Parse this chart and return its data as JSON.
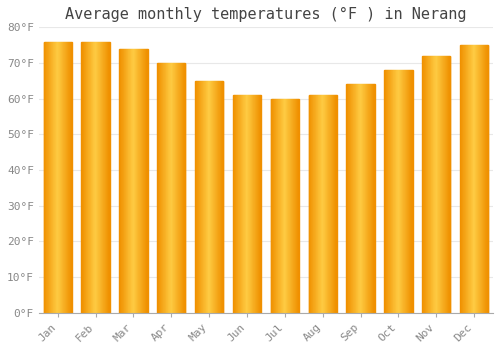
{
  "title": "Average monthly temperatures (°F ) in Nerang",
  "months": [
    "Jan",
    "Feb",
    "Mar",
    "Apr",
    "May",
    "Jun",
    "Jul",
    "Aug",
    "Sep",
    "Oct",
    "Nov",
    "Dec"
  ],
  "values": [
    76,
    76,
    74,
    70,
    65,
    61,
    60,
    61,
    64,
    68,
    72,
    75
  ],
  "bar_color_left": "#F5A800",
  "bar_color_center": "#FFCC44",
  "bar_color_right": "#F5A800",
  "ylim": [
    0,
    80
  ],
  "yticks": [
    0,
    10,
    20,
    30,
    40,
    50,
    60,
    70,
    80
  ],
  "ytick_labels": [
    "0°F",
    "10°F",
    "20°F",
    "30°F",
    "40°F",
    "50°F",
    "60°F",
    "70°F",
    "80°F"
  ],
  "background_color": "#FFFFFF",
  "grid_color": "#E8E8E8",
  "title_fontsize": 11,
  "tick_fontsize": 8,
  "font_family": "monospace"
}
